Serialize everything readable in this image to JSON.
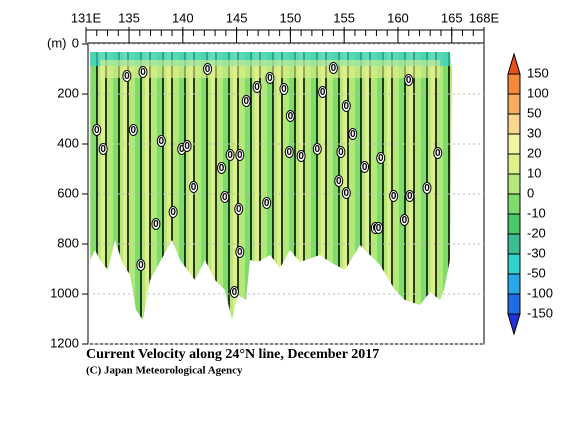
{
  "chart_data": {
    "type": "contour",
    "title": "Current Velocity along 24°N line, December 2017",
    "subtitle": "(C) Japan Meteorological Agency",
    "y_label": "(m)",
    "xlim": [
      131,
      168
    ],
    "xticks": [
      {
        "value": 131,
        "label": "131E"
      },
      135,
      140,
      145,
      150,
      155,
      160,
      165,
      {
        "value": 168,
        "label": "168E"
      }
    ],
    "ylim": [
      1200,
      0
    ],
    "yticks": [
      0,
      200,
      400,
      600,
      800,
      1000,
      1200
    ],
    "grid": true,
    "colorbar": {
      "levels": [
        150,
        100,
        50,
        30,
        20,
        10,
        0,
        -10,
        -20,
        -30,
        -50,
        -100,
        -150
      ],
      "colors": [
        "#e8501e",
        "#f58a3c",
        "#f7ad5e",
        "#f9d78f",
        "#f2f4a0",
        "#ddf08a",
        "#b4e878",
        "#7fdb6c",
        "#4cc86a",
        "#3bbd95",
        "#30d3cc",
        "#28a8ea",
        "#1f6ce6",
        "#2233dd"
      ]
    },
    "contour_labels": {
      "text": "0",
      "x": [
        132.0,
        132.6,
        134.8,
        136.3,
        135.4,
        138.0,
        139.9,
        140.4,
        142.3,
        144.4,
        145.3,
        145.9,
        146.9,
        148.1,
        149.4,
        150.0,
        149.9,
        151.0,
        152.5,
        153.0,
        154.0,
        155.2,
        155.8,
        154.7,
        154.5,
        155.2,
        156.9,
        158.4,
        159.6,
        161.1,
        161.0,
        162.7,
        163.7,
        160.6,
        157.9,
        158.2,
        143.9,
        143.6,
        145.2,
        145.3,
        144.8,
        141.0,
        139.1,
        137.5,
        136.1,
        147.8
      ],
      "y": [
        344,
        420,
        128,
        112,
        344,
        388,
        420,
        408,
        100,
        444,
        444,
        228,
        172,
        136,
        180,
        288,
        432,
        448,
        420,
        192,
        96,
        248,
        360,
        432,
        548,
        596,
        492,
        456,
        608,
        608,
        144,
        576,
        436,
        704,
        736,
        736,
        612,
        496,
        660,
        832,
        992,
        572,
        672,
        720,
        884,
        636
      ]
    }
  }
}
